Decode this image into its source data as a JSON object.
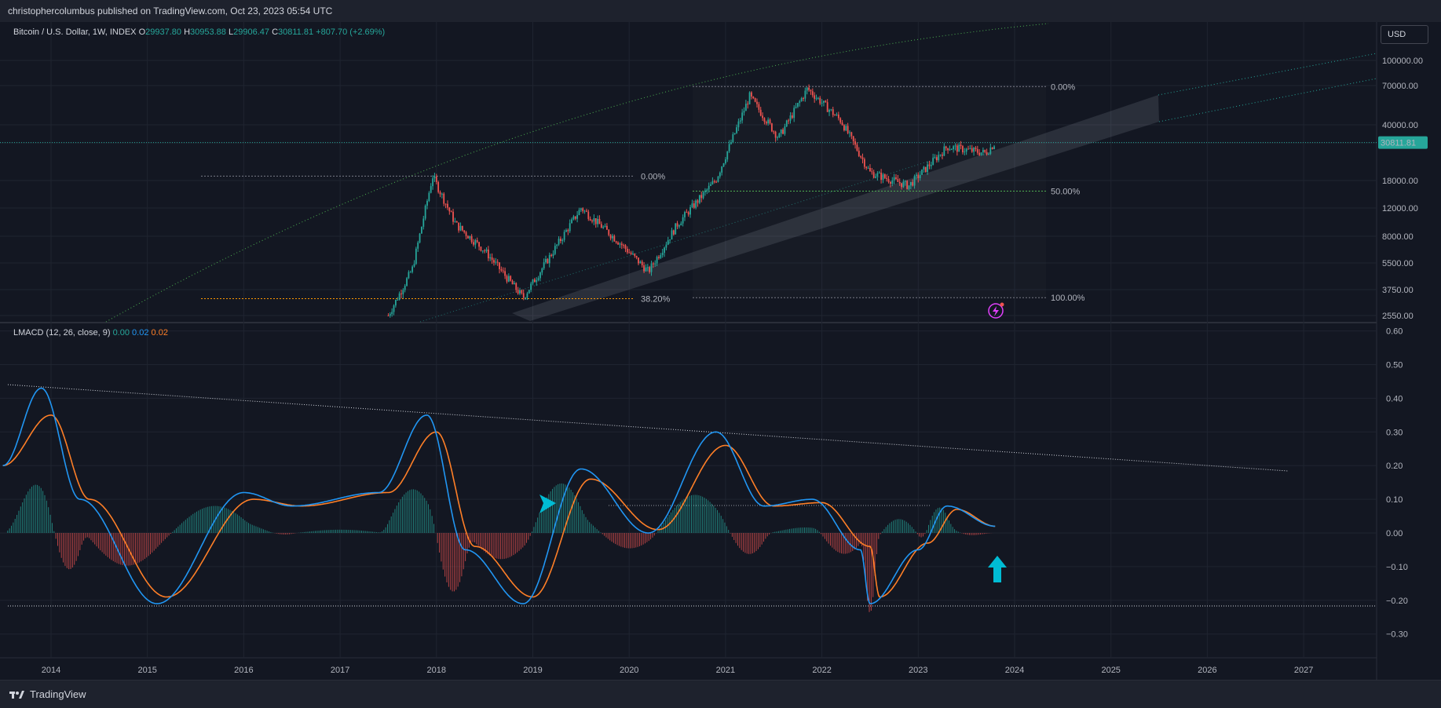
{
  "header": {
    "published": "christophercolumbus published on TradingView.com, Oct 23, 2023 05:54 UTC"
  },
  "footer": {
    "brand": "TradingView"
  },
  "price_pane": {
    "symbol": "Bitcoin / U.S. Dollar, 1W, INDEX",
    "o_label": "O",
    "o_value": "29937.80",
    "h_label": "H",
    "h_value": "30953.88",
    "l_label": "L",
    "l_value": "29906.47",
    "c_label": "C",
    "c_value": "30811.81",
    "change": "+807.70 (+2.69%)",
    "currency": "USD",
    "last_price_label": "30811.81"
  },
  "indicator_pane": {
    "name": "LMACD (12, 26, close, 9)",
    "v1": "0.00",
    "v2": "0.02",
    "v3": "0.02"
  },
  "colors": {
    "background": "#131722",
    "up": "#26a69a",
    "down": "#ef5350",
    "macd": "#2196f3",
    "signal": "#ff7f27",
    "green_label": "#4caf50",
    "orange_label": "#ff9800",
    "arrow": "#00bcd4"
  },
  "chart_data": [
    {
      "type": "candlestick",
      "scale": "log",
      "price_ticks": [
        "100000.00",
        "70000.00",
        "40000.00",
        "28000.00",
        "18000.00",
        "12000.00",
        "8000.00",
        "5500.00",
        "3750.00",
        "2550.00"
      ],
      "x_ticks": [
        "2014",
        "2015",
        "2016",
        "2017",
        "2018",
        "2019",
        "2020",
        "2021",
        "2022",
        "2023",
        "2024",
        "2025",
        "2026",
        "2027"
      ],
      "fib_levels_2018": [
        "0.00%",
        "38.20%"
      ],
      "fib_levels_2021": [
        "0.00%",
        "50.00%",
        "100.00%"
      ],
      "approx_weekly_close_path": [
        {
          "x": "2017.5",
          "y": 2550
        },
        {
          "x": "2017.75",
          "y": 5000
        },
        {
          "x": "2017.96",
          "y": 19000
        },
        {
          "x": "2018.2",
          "y": 9500
        },
        {
          "x": "2018.5",
          "y": 6500
        },
        {
          "x": "2018.9",
          "y": 3300
        },
        {
          "x": "2019.5",
          "y": 12000
        },
        {
          "x": "2019.9",
          "y": 7300
        },
        {
          "x": "2020.2",
          "y": 4800
        },
        {
          "x": "2020.5",
          "y": 9500
        },
        {
          "x": "2020.9",
          "y": 18000
        },
        {
          "x": "2021.25",
          "y": 60000
        },
        {
          "x": "2021.55",
          "y": 33000
        },
        {
          "x": "2021.85",
          "y": 67000
        },
        {
          "x": "2022.2",
          "y": 42000
        },
        {
          "x": "2022.5",
          "y": 20000
        },
        {
          "x": "2022.9",
          "y": 16500
        },
        {
          "x": "2023.3",
          "y": 29000
        },
        {
          "x": "2023.7",
          "y": 26500
        },
        {
          "x": "2023.8",
          "y": 30811
        }
      ]
    },
    {
      "type": "line",
      "y_ticks": [
        "0.60",
        "0.50",
        "0.40",
        "0.30",
        "0.20",
        "0.10",
        "0.00",
        "−0.10",
        "−0.20",
        "−0.30"
      ],
      "series": [
        {
          "values_macd": [
            [
              2013.5,
              0.2
            ],
            [
              2013.9,
              0.43
            ],
            [
              2014.3,
              0.1
            ],
            [
              2015.1,
              -0.21
            ],
            [
              2016.0,
              0.12
            ],
            [
              2016.5,
              0.08
            ],
            [
              2017.4,
              0.12
            ],
            [
              2017.9,
              0.35
            ],
            [
              2018.3,
              -0.05
            ],
            [
              2018.9,
              -0.21
            ],
            [
              2019.5,
              0.19
            ],
            [
              2020.2,
              0.0
            ],
            [
              2020.9,
              0.3
            ],
            [
              2021.4,
              0.08
            ],
            [
              2021.9,
              0.1
            ],
            [
              2022.4,
              -0.05
            ],
            [
              2022.5,
              -0.21
            ],
            [
              2023.0,
              -0.05
            ],
            [
              2023.3,
              0.08
            ],
            [
              2023.8,
              0.02
            ]
          ]
        },
        {
          "values_signal": [
            [
              2013.5,
              0.2
            ],
            [
              2014.0,
              0.35
            ],
            [
              2014.4,
              0.1
            ],
            [
              2015.2,
              -0.19
            ],
            [
              2016.1,
              0.1
            ],
            [
              2016.6,
              0.08
            ],
            [
              2017.5,
              0.12
            ],
            [
              2018.0,
              0.3
            ],
            [
              2018.4,
              -0.04
            ],
            [
              2019.0,
              -0.19
            ],
            [
              2019.6,
              0.16
            ],
            [
              2020.3,
              0.01
            ],
            [
              2021.0,
              0.26
            ],
            [
              2021.5,
              0.08
            ],
            [
              2022.0,
              0.09
            ],
            [
              2022.5,
              -0.04
            ],
            [
              2022.6,
              -0.19
            ],
            [
              2023.1,
              -0.03
            ],
            [
              2023.4,
              0.07
            ],
            [
              2023.8,
              0.02
            ]
          ]
        }
      ]
    }
  ]
}
